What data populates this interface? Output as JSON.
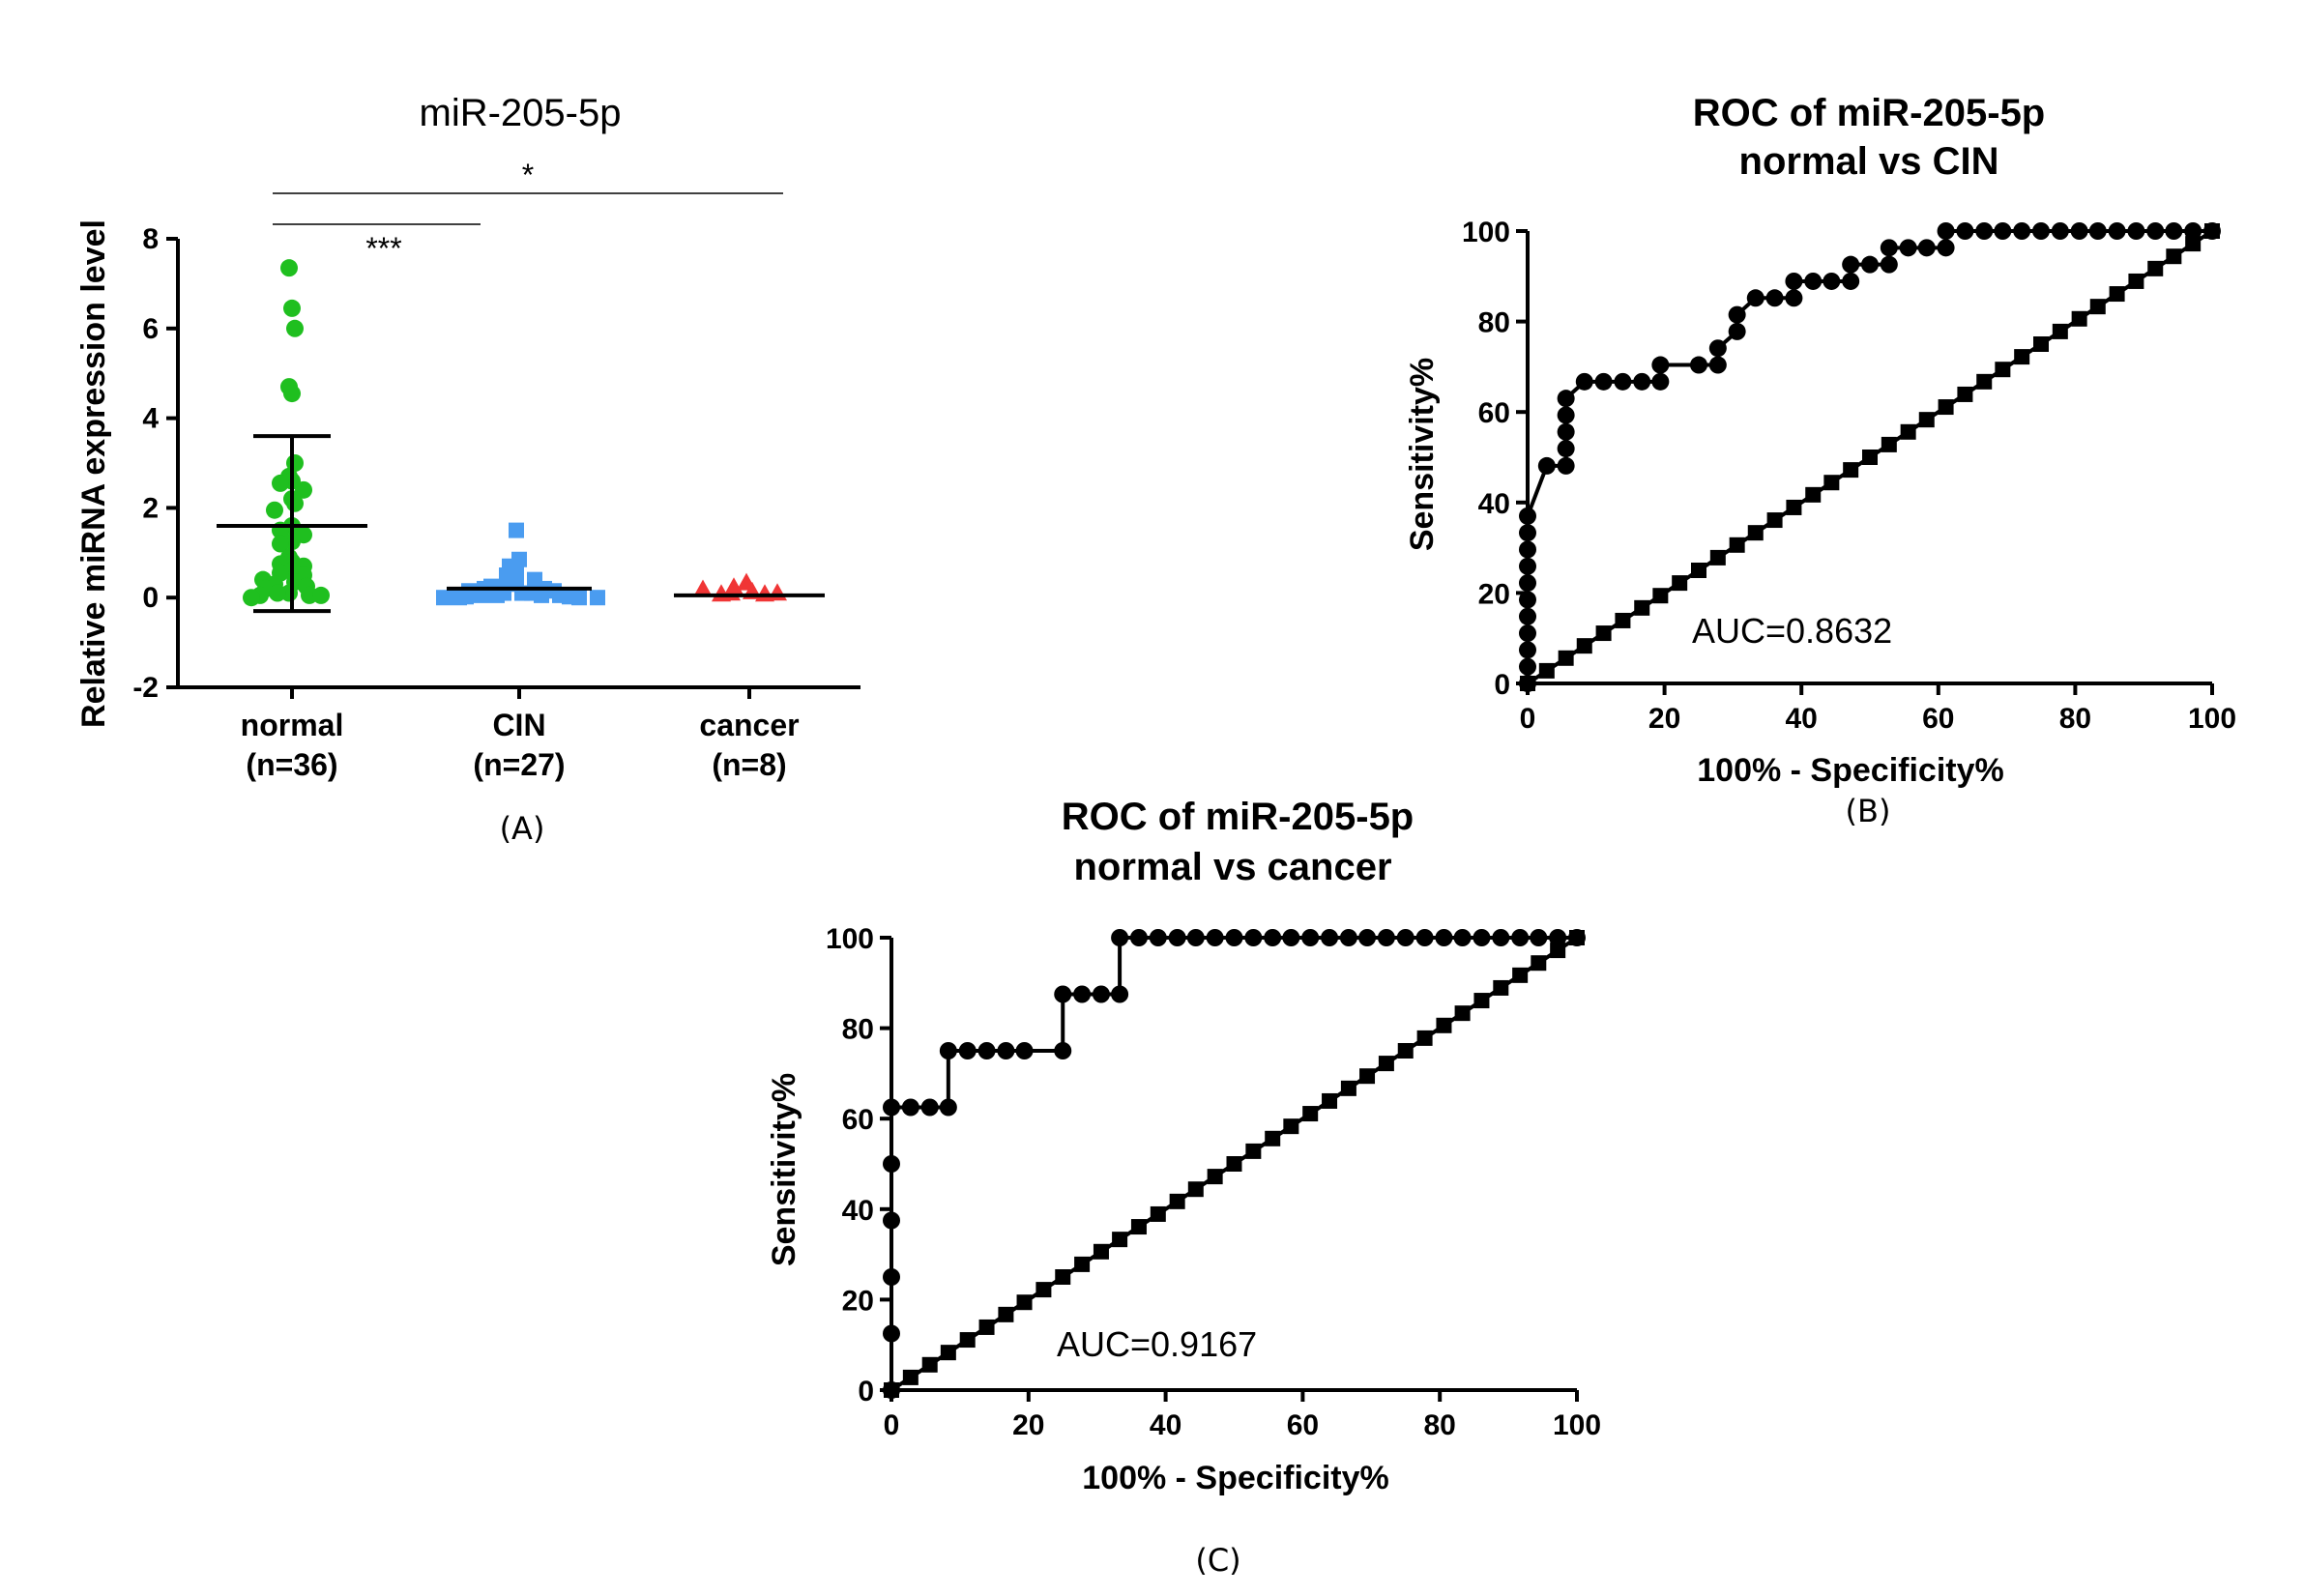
{
  "chart_data": [
    {
      "type": "scatter",
      "panel_label": "(A)",
      "title": "miR-205-5p",
      "ylabel": "Relative miRNA expression level",
      "ylim": [
        -2,
        8
      ],
      "yticks": [
        "-2",
        "0",
        "2",
        "4",
        "6",
        "8"
      ],
      "categories": [
        "normal",
        "CIN",
        "cancer"
      ],
      "category_n": [
        "(n=36)",
        "(n=27)",
        "(n=8)"
      ],
      "colors": [
        "#1fbf1f",
        "#4a9cf0",
        "#f03535"
      ],
      "markers": [
        "circle",
        "square",
        "triangle"
      ],
      "groups": [
        {
          "name": "normal",
          "mean": 1.6,
          "sd_low": -0.3,
          "sd_high": 3.6,
          "points": [
            7.35,
            6.45,
            6.0,
            4.7,
            4.55,
            3.0,
            2.7,
            2.6,
            2.55,
            2.4,
            2.2,
            2.1,
            1.95,
            1.6,
            1.5,
            1.4,
            1.25,
            1.2,
            0.9,
            0.8,
            0.75,
            0.7,
            0.6,
            0.55,
            0.5,
            0.4,
            0.35,
            0.3,
            0.25,
            0.2,
            0.1,
            0.1,
            0.05,
            0.05,
            0.05,
            0.0
          ]
        },
        {
          "name": "CIN",
          "mean": 0.2,
          "points": [
            1.5,
            0.85,
            0.7,
            0.6,
            0.5,
            0.4,
            0.35,
            0.3,
            0.3,
            0.25,
            0.2,
            0.2,
            0.15,
            0.15,
            0.1,
            0.1,
            0.1,
            0.05,
            0.05,
            0.05,
            0.05,
            0.02,
            0.02,
            0.0,
            0.0,
            0.0,
            0.0
          ]
        },
        {
          "name": "cancer",
          "mean": 0.05,
          "points": [
            0.25,
            0.15,
            0.05,
            0.02,
            0.0,
            0.0,
            0.02,
            0.1
          ]
        }
      ],
      "comparisons": [
        {
          "from": "normal",
          "to": "cancer",
          "label": "*"
        },
        {
          "from": "normal",
          "to": "CIN",
          "label": "***"
        }
      ]
    },
    {
      "type": "line",
      "panel_label": "(B)",
      "title": "ROC of miR-205-5p",
      "subtitle": "normal vs CIN",
      "xlabel": "100% - Specificity%",
      "ylabel": "Sensitivity%",
      "xlim": [
        0,
        100
      ],
      "ylim": [
        0,
        100
      ],
      "xticks": [
        "0",
        "20",
        "40",
        "60",
        "80",
        "100"
      ],
      "yticks": [
        "0",
        "20",
        "40",
        "60",
        "80",
        "100"
      ],
      "annotation": "AUC=0.8632",
      "series": [
        {
          "name": "ROC curve",
          "marker": "circle",
          "x": [
            0,
            0,
            0,
            0,
            0,
            0,
            0,
            0,
            0,
            0,
            0,
            2.8,
            5.6,
            5.6,
            5.6,
            5.6,
            5.6,
            8.3,
            11.1,
            13.9,
            16.7,
            19.4,
            19.4,
            25,
            27.8,
            27.8,
            30.6,
            30.6,
            33.3,
            36.1,
            38.9,
            38.9,
            41.7,
            44.4,
            47.2,
            47.2,
            50,
            52.8,
            52.8,
            55.6,
            58.3,
            61.1,
            61.1,
            63.9,
            66.7,
            69.4,
            72.2,
            75,
            77.8,
            80.6,
            83.3,
            86.1,
            88.9,
            91.7,
            94.4,
            97.2,
            100
          ],
          "y": [
            0,
            3.7,
            7.4,
            11.1,
            14.8,
            18.5,
            22.2,
            25.9,
            29.6,
            33.3,
            37,
            48.1,
            48.1,
            51.9,
            55.6,
            59.3,
            63,
            66.7,
            66.7,
            66.7,
            66.7,
            66.7,
            70.4,
            70.4,
            70.4,
            74.1,
            77.8,
            81.5,
            85.2,
            85.2,
            85.2,
            88.9,
            88.9,
            88.9,
            88.9,
            92.6,
            92.6,
            92.6,
            96.3,
            96.3,
            96.3,
            96.3,
            100,
            100,
            100,
            100,
            100,
            100,
            100,
            100,
            100,
            100,
            100,
            100,
            100,
            100,
            100
          ]
        },
        {
          "name": "Reference line",
          "marker": "square",
          "x": [
            0,
            2.8,
            5.6,
            8.3,
            11.1,
            13.9,
            16.7,
            19.4,
            22.2,
            25,
            27.8,
            30.6,
            33.3,
            36.1,
            38.9,
            41.7,
            44.4,
            47.2,
            50,
            52.8,
            55.6,
            58.3,
            61.1,
            63.9,
            66.7,
            69.4,
            72.2,
            75,
            77.8,
            80.6,
            83.3,
            86.1,
            88.9,
            91.7,
            94.4,
            97.2,
            100
          ],
          "y": [
            0,
            2.8,
            5.6,
            8.3,
            11.1,
            13.9,
            16.7,
            19.4,
            22.2,
            25,
            27.8,
            30.6,
            33.3,
            36.1,
            38.9,
            41.7,
            44.4,
            47.2,
            50,
            52.8,
            55.6,
            58.3,
            61.1,
            63.9,
            66.7,
            69.4,
            72.2,
            75,
            77.8,
            80.6,
            83.3,
            86.1,
            88.9,
            91.7,
            94.4,
            97.2,
            100
          ]
        }
      ]
    },
    {
      "type": "line",
      "panel_label": "(C)",
      "title": "ROC of miR-205-5p",
      "subtitle": "normal vs cancer",
      "xlabel": "100% - Specificity%",
      "ylabel": "Sensitivity%",
      "xlim": [
        0,
        100
      ],
      "ylim": [
        0,
        100
      ],
      "xticks": [
        "0",
        "20",
        "40",
        "60",
        "80",
        "100"
      ],
      "yticks": [
        "0",
        "20",
        "40",
        "60",
        "80",
        "100"
      ],
      "annotation": "AUC=0.9167",
      "series": [
        {
          "name": "ROC curve",
          "marker": "circle",
          "x": [
            0,
            0,
            0,
            0,
            0,
            0,
            2.8,
            5.6,
            8.3,
            8.3,
            11.1,
            13.9,
            16.7,
            19.4,
            25,
            25,
            27.8,
            30.6,
            33.3,
            33.3,
            36.1,
            38.9,
            41.7,
            44.4,
            47.2,
            50,
            52.8,
            55.6,
            58.3,
            61.1,
            63.9,
            66.7,
            69.4,
            72.2,
            75,
            77.8,
            80.6,
            83.3,
            86.1,
            88.9,
            91.7,
            94.4,
            97.2,
            100
          ],
          "y": [
            0,
            12.5,
            25,
            37.5,
            50,
            62.5,
            62.5,
            62.5,
            62.5,
            75,
            75,
            75,
            75,
            75,
            75,
            87.5,
            87.5,
            87.5,
            87.5,
            100,
            100,
            100,
            100,
            100,
            100,
            100,
            100,
            100,
            100,
            100,
            100,
            100,
            100,
            100,
            100,
            100,
            100,
            100,
            100,
            100,
            100,
            100,
            100,
            100
          ]
        },
        {
          "name": "Reference line",
          "marker": "square",
          "x": [
            0,
            2.8,
            5.6,
            8.3,
            11.1,
            13.9,
            16.7,
            19.4,
            22.2,
            25,
            27.8,
            30.6,
            33.3,
            36.1,
            38.9,
            41.7,
            44.4,
            47.2,
            50,
            52.8,
            55.6,
            58.3,
            61.1,
            63.9,
            66.7,
            69.4,
            72.2,
            75,
            77.8,
            80.6,
            83.3,
            86.1,
            88.9,
            91.7,
            94.4,
            97.2,
            100
          ],
          "y": [
            0,
            2.8,
            5.6,
            8.3,
            11.1,
            13.9,
            16.7,
            19.4,
            22.2,
            25,
            27.8,
            30.6,
            33.3,
            36.1,
            38.9,
            41.7,
            44.4,
            47.2,
            50,
            52.8,
            55.6,
            58.3,
            61.1,
            63.9,
            66.7,
            69.4,
            72.2,
            75,
            77.8,
            80.6,
            83.3,
            86.1,
            88.9,
            91.7,
            94.4,
            97.2,
            100
          ]
        }
      ]
    }
  ]
}
